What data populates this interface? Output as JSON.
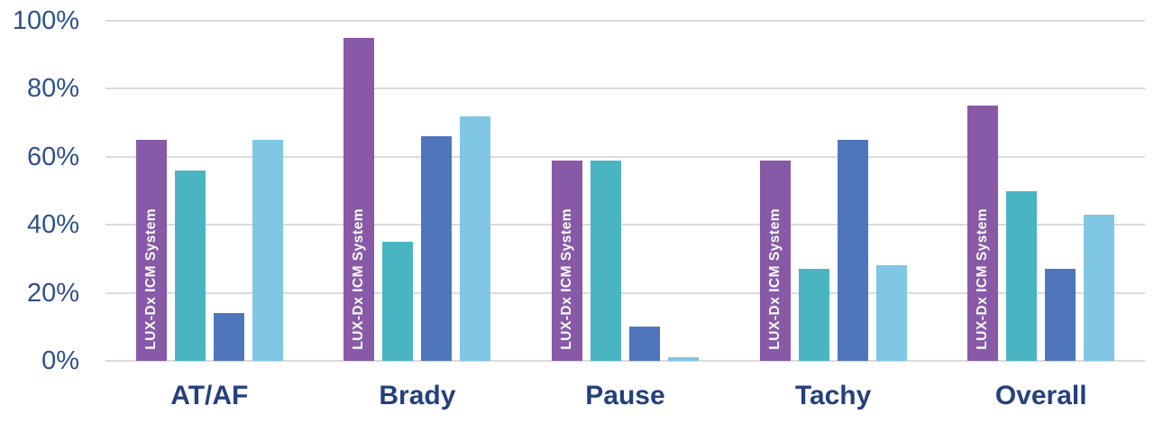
{
  "chart_data": {
    "type": "bar",
    "title": "",
    "xlabel": "",
    "ylabel": "",
    "categories": [
      "AT/AF",
      "Brady",
      "Pause",
      "Tachy",
      "Overall"
    ],
    "series": [
      {
        "id": "lux-dx-icm-system",
        "in_bar_label": "LUX-Dx ICM System",
        "color": "#8859a7",
        "values": [
          65,
          95,
          59,
          59,
          75
        ]
      },
      {
        "id": "teal-series",
        "in_bar_label": "",
        "color": "#4ab5c2",
        "values": [
          56,
          35,
          59,
          27,
          50
        ]
      },
      {
        "id": "dark-blue-series",
        "in_bar_label": "",
        "color": "#4f76bc",
        "values": [
          14,
          66,
          10,
          65,
          27
        ]
      },
      {
        "id": "light-blue-series",
        "in_bar_label": "",
        "color": "#7fc7e4",
        "values": [
          65,
          72,
          1,
          28,
          43
        ]
      }
    ],
    "ylim": [
      0,
      100
    ],
    "yticks": [
      0,
      20,
      40,
      60,
      80,
      100
    ],
    "ytick_labels": [
      "0%",
      "20%",
      "40%",
      "60%",
      "80%",
      "100%"
    ],
    "grid": "horizontal",
    "legend": "none"
  },
  "colors": {
    "background": "#ffffff",
    "gridline": "#dadada",
    "ytick_text": "#2e5188",
    "category_text": "#24417d",
    "bar_inner_label_text": "#ffffff"
  }
}
